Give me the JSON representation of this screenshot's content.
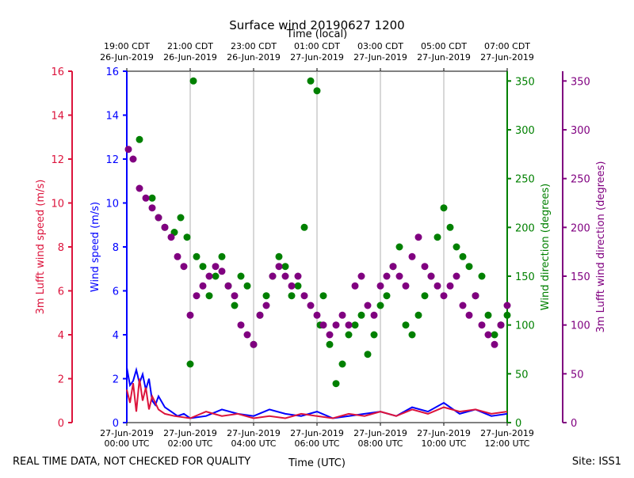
{
  "chart_data": {
    "type": "scatter",
    "title": "Surface wind 20190627 1200",
    "top_axis_label": "Time (local)",
    "xlabel": "Time (UTC)",
    "footer_left": "REAL TIME DATA, NOT CHECKED FOR QUALITY",
    "footer_right": "Site: ISS1",
    "x_range_hours": [
      0,
      12
    ],
    "x_ticks": [
      {
        "h": 0,
        "date": "27-Jun-2019",
        "utc": "00:00 UTC",
        "local_time": "19:00 CDT",
        "local_date": "26-Jun-2019"
      },
      {
        "h": 2,
        "date": "27-Jun-2019",
        "utc": "02:00 UTC",
        "local_time": "21:00 CDT",
        "local_date": "26-Jun-2019"
      },
      {
        "h": 4,
        "date": "27-Jun-2019",
        "utc": "04:00 UTC",
        "local_time": "23:00 CDT",
        "local_date": "26-Jun-2019"
      },
      {
        "h": 6,
        "date": "27-Jun-2019",
        "utc": "06:00 UTC",
        "local_time": "01:00 CDT",
        "local_date": "27-Jun-2019"
      },
      {
        "h": 8,
        "date": "27-Jun-2019",
        "utc": "08:00 UTC",
        "local_time": "03:00 CDT",
        "local_date": "27-Jun-2019"
      },
      {
        "h": 10,
        "date": "27-Jun-2019",
        "utc": "10:00 UTC",
        "local_time": "05:00 CDT",
        "local_date": "27-Jun-2019"
      },
      {
        "h": 12,
        "date": "27-Jun-2019",
        "utc": "12:00 UTC",
        "local_time": "07:00 CDT",
        "local_date": "27-Jun-2019"
      }
    ],
    "axes": {
      "left_outer": {
        "label": "3m Lufft wind speed (m/s)",
        "color": "#dc143c",
        "range": [
          0,
          16
        ],
        "ticks": [
          0,
          2,
          4,
          6,
          8,
          10,
          12,
          14,
          16
        ]
      },
      "left_inner": {
        "label": "Wind speed (m/s)",
        "color": "#0000ff",
        "range": [
          0,
          16
        ],
        "ticks": [
          0,
          2,
          4,
          6,
          8,
          10,
          12,
          14,
          16
        ]
      },
      "right_inner": {
        "label": "Wind direction (degrees)",
        "color": "#008000",
        "range": [
          0,
          360
        ],
        "ticks": [
          0,
          50,
          100,
          150,
          200,
          250,
          300,
          350
        ]
      },
      "right_outer": {
        "label": "3m Lufft wind direction (degrees)",
        "color": "#800080",
        "range": [
          0,
          360
        ],
        "ticks": [
          0,
          50,
          100,
          150,
          200,
          250,
          300,
          350
        ]
      }
    },
    "series": [
      {
        "name": "Wind speed (m/s)",
        "kind": "line",
        "color": "#0000ff",
        "axis": "left_inner",
        "points": [
          [
            0,
            2.5
          ],
          [
            0.1,
            1.7
          ],
          [
            0.2,
            1.9
          ],
          [
            0.3,
            2.4
          ],
          [
            0.4,
            1.8
          ],
          [
            0.5,
            2.2
          ],
          [
            0.6,
            1.5
          ],
          [
            0.7,
            2.0
          ],
          [
            0.8,
            1.0
          ],
          [
            0.9,
            0.8
          ],
          [
            1.0,
            1.2
          ],
          [
            1.2,
            0.7
          ],
          [
            1.4,
            0.5
          ],
          [
            1.6,
            0.3
          ],
          [
            1.8,
            0.4
          ],
          [
            2.0,
            0.2
          ],
          [
            2.5,
            0.3
          ],
          [
            3.0,
            0.6
          ],
          [
            3.5,
            0.4
          ],
          [
            4.0,
            0.3
          ],
          [
            4.5,
            0.6
          ],
          [
            5.0,
            0.4
          ],
          [
            5.5,
            0.3
          ],
          [
            6.0,
            0.5
          ],
          [
            6.5,
            0.2
          ],
          [
            7.0,
            0.3
          ],
          [
            7.5,
            0.4
          ],
          [
            8.0,
            0.5
          ],
          [
            8.5,
            0.3
          ],
          [
            9.0,
            0.7
          ],
          [
            9.5,
            0.5
          ],
          [
            10.0,
            0.9
          ],
          [
            10.5,
            0.4
          ],
          [
            11.0,
            0.6
          ],
          [
            11.5,
            0.3
          ],
          [
            12.0,
            0.4
          ]
        ]
      },
      {
        "name": "3m Lufft wind speed (m/s)",
        "kind": "line",
        "color": "#dc143c",
        "axis": "left_outer",
        "points": [
          [
            0,
            1.5
          ],
          [
            0.1,
            0.9
          ],
          [
            0.2,
            1.8
          ],
          [
            0.3,
            0.5
          ],
          [
            0.4,
            2.0
          ],
          [
            0.5,
            1.0
          ],
          [
            0.6,
            1.6
          ],
          [
            0.7,
            0.6
          ],
          [
            0.8,
            1.2
          ],
          [
            1.0,
            0.6
          ],
          [
            1.2,
            0.4
          ],
          [
            1.5,
            0.3
          ],
          [
            2.0,
            0.2
          ],
          [
            2.5,
            0.5
          ],
          [
            3.0,
            0.3
          ],
          [
            3.5,
            0.4
          ],
          [
            4.0,
            0.2
          ],
          [
            4.5,
            0.3
          ],
          [
            5.0,
            0.2
          ],
          [
            5.5,
            0.4
          ],
          [
            6.0,
            0.3
          ],
          [
            6.5,
            0.2
          ],
          [
            7.0,
            0.4
          ],
          [
            7.5,
            0.3
          ],
          [
            8.0,
            0.5
          ],
          [
            8.5,
            0.3
          ],
          [
            9.0,
            0.6
          ],
          [
            9.5,
            0.4
          ],
          [
            10.0,
            0.7
          ],
          [
            10.5,
            0.5
          ],
          [
            11.0,
            0.6
          ],
          [
            11.5,
            0.4
          ],
          [
            12.0,
            0.5
          ]
        ]
      },
      {
        "name": "Wind direction (degrees)",
        "kind": "scatter",
        "color": "#008000",
        "axis": "right_inner",
        "points": [
          [
            0.4,
            290
          ],
          [
            0.8,
            230
          ],
          [
            1.0,
            210
          ],
          [
            1.2,
            200
          ],
          [
            1.5,
            195
          ],
          [
            1.7,
            210
          ],
          [
            1.9,
            190
          ],
          [
            2.0,
            60
          ],
          [
            2.1,
            350
          ],
          [
            2.2,
            170
          ],
          [
            2.4,
            160
          ],
          [
            2.6,
            130
          ],
          [
            2.8,
            150
          ],
          [
            3.0,
            170
          ],
          [
            3.2,
            140
          ],
          [
            3.4,
            120
          ],
          [
            3.6,
            150
          ],
          [
            3.8,
            140
          ],
          [
            4.0,
            80
          ],
          [
            4.2,
            110
          ],
          [
            4.4,
            130
          ],
          [
            4.6,
            150
          ],
          [
            4.8,
            170
          ],
          [
            5.0,
            160
          ],
          [
            5.2,
            130
          ],
          [
            5.4,
            140
          ],
          [
            5.6,
            200
          ],
          [
            5.8,
            350
          ],
          [
            6.0,
            340
          ],
          [
            6.1,
            100
          ],
          [
            6.2,
            130
          ],
          [
            6.4,
            80
          ],
          [
            6.6,
            40
          ],
          [
            6.8,
            60
          ],
          [
            7.0,
            90
          ],
          [
            7.2,
            100
          ],
          [
            7.4,
            110
          ],
          [
            7.6,
            70
          ],
          [
            7.8,
            90
          ],
          [
            8.0,
            120
          ],
          [
            8.2,
            130
          ],
          [
            8.4,
            160
          ],
          [
            8.6,
            180
          ],
          [
            8.8,
            100
          ],
          [
            9.0,
            90
          ],
          [
            9.2,
            110
          ],
          [
            9.4,
            130
          ],
          [
            9.6,
            150
          ],
          [
            9.8,
            190
          ],
          [
            10.0,
            220
          ],
          [
            10.2,
            200
          ],
          [
            10.4,
            180
          ],
          [
            10.6,
            170
          ],
          [
            10.8,
            160
          ],
          [
            11.0,
            130
          ],
          [
            11.2,
            150
          ],
          [
            11.4,
            110
          ],
          [
            11.6,
            90
          ],
          [
            11.8,
            100
          ],
          [
            12.0,
            110
          ]
        ]
      },
      {
        "name": "3m Lufft wind direction (degrees)",
        "kind": "scatter",
        "color": "#800080",
        "axis": "right_outer",
        "points": [
          [
            0.05,
            280
          ],
          [
            0.2,
            270
          ],
          [
            0.4,
            240
          ],
          [
            0.6,
            230
          ],
          [
            0.8,
            220
          ],
          [
            1.0,
            210
          ],
          [
            1.2,
            200
          ],
          [
            1.4,
            190
          ],
          [
            1.6,
            170
          ],
          [
            1.8,
            160
          ],
          [
            2.0,
            110
          ],
          [
            2.2,
            130
          ],
          [
            2.4,
            140
          ],
          [
            2.6,
            150
          ],
          [
            2.8,
            160
          ],
          [
            3.0,
            155
          ],
          [
            3.2,
            140
          ],
          [
            3.4,
            130
          ],
          [
            3.6,
            100
          ],
          [
            3.8,
            90
          ],
          [
            4.0,
            80
          ],
          [
            4.2,
            110
          ],
          [
            4.4,
            120
          ],
          [
            4.6,
            150
          ],
          [
            4.8,
            160
          ],
          [
            5.0,
            150
          ],
          [
            5.2,
            140
          ],
          [
            5.4,
            150
          ],
          [
            5.6,
            130
          ],
          [
            5.8,
            120
          ],
          [
            6.0,
            110
          ],
          [
            6.2,
            100
          ],
          [
            6.4,
            90
          ],
          [
            6.6,
            100
          ],
          [
            6.8,
            110
          ],
          [
            7.0,
            100
          ],
          [
            7.2,
            140
          ],
          [
            7.4,
            150
          ],
          [
            7.6,
            120
          ],
          [
            7.8,
            110
          ],
          [
            8.0,
            140
          ],
          [
            8.2,
            150
          ],
          [
            8.4,
            160
          ],
          [
            8.6,
            150
          ],
          [
            8.8,
            140
          ],
          [
            9.0,
            170
          ],
          [
            9.2,
            190
          ],
          [
            9.4,
            160
          ],
          [
            9.6,
            150
          ],
          [
            9.8,
            140
          ],
          [
            10.0,
            130
          ],
          [
            10.2,
            140
          ],
          [
            10.4,
            150
          ],
          [
            10.6,
            120
          ],
          [
            10.8,
            110
          ],
          [
            11.0,
            130
          ],
          [
            11.2,
            100
          ],
          [
            11.4,
            90
          ],
          [
            11.6,
            80
          ],
          [
            11.8,
            100
          ],
          [
            12.0,
            120
          ]
        ]
      }
    ]
  }
}
